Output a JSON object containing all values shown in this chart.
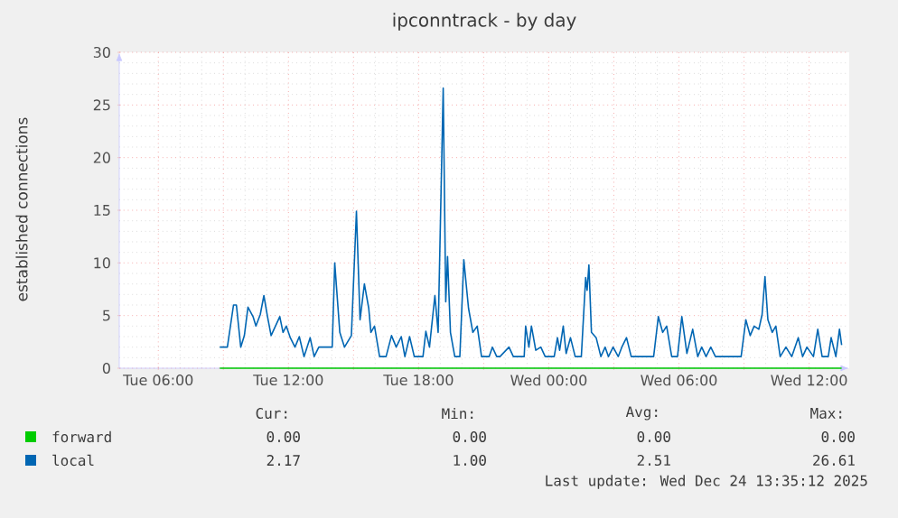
{
  "chart_data": {
    "type": "line",
    "title": "ipconntrack - by day",
    "ylabel": "established connections",
    "xlim": [
      "2025-12-23T04:12",
      "2025-12-24T13:51"
    ],
    "ylim": [
      0,
      30
    ],
    "xticks": [
      {
        "value": "2025-12-23T06:00",
        "label": "Tue 06:00"
      },
      {
        "value": "2025-12-23T09:00",
        "label": null
      },
      {
        "value": "2025-12-23T12:00",
        "label": "Tue 12:00"
      },
      {
        "value": "2025-12-23T15:00",
        "label": null
      },
      {
        "value": "2025-12-23T18:00",
        "label": "Tue 18:00"
      },
      {
        "value": "2025-12-23T21:00",
        "label": null
      },
      {
        "value": "2025-12-24T00:00",
        "label": "Wed 00:00"
      },
      {
        "value": "2025-12-24T03:00",
        "label": null
      },
      {
        "value": "2025-12-24T06:00",
        "label": "Wed 06:00"
      },
      {
        "value": "2025-12-24T09:00",
        "label": null
      },
      {
        "value": "2025-12-24T12:00",
        "label": "Wed 12:00"
      }
    ],
    "yticks": [
      0,
      5,
      10,
      15,
      20,
      25,
      30
    ],
    "grid": true,
    "legend": "bottom",
    "marker": "none",
    "line_style": "solid",
    "series": [
      {
        "name": "forward",
        "color": "#00cc00",
        "x": [
          "2025-12-23T08:50",
          "2025-12-24T13:30"
        ],
        "values": [
          0,
          0
        ]
      },
      {
        "name": "local",
        "color": "#0066b3",
        "x": [
          "2025-12-23T08:50",
          "2025-12-23T09:11",
          "2025-12-23T09:28",
          "2025-12-23T09:36",
          "2025-12-23T09:48",
          "2025-12-23T09:58",
          "2025-12-23T10:08",
          "2025-12-23T10:22",
          "2025-12-23T10:30",
          "2025-12-23T10:42",
          "2025-12-23T10:52",
          "2025-12-23T11:02",
          "2025-12-23T11:12",
          "2025-12-23T11:36",
          "2025-12-23T11:45",
          "2025-12-23T11:54",
          "2025-12-23T12:05",
          "2025-12-23T12:18",
          "2025-12-23T12:30",
          "2025-12-23T12:43",
          "2025-12-23T13:00",
          "2025-12-23T13:11",
          "2025-12-23T13:24",
          "2025-12-23T14:01",
          "2025-12-23T14:08",
          "2025-12-23T14:22",
          "2025-12-23T14:35",
          "2025-12-23T14:54",
          "2025-12-23T15:08",
          "2025-12-23T15:18",
          "2025-12-23T15:30",
          "2025-12-23T15:42",
          "2025-12-23T15:48",
          "2025-12-23T15:58",
          "2025-12-23T16:12",
          "2025-12-23T16:30",
          "2025-12-23T16:45",
          "2025-12-23T16:58",
          "2025-12-23T17:12",
          "2025-12-23T17:22",
          "2025-12-23T17:35",
          "2025-12-23T17:48",
          "2025-12-23T18:12",
          "2025-12-23T18:20",
          "2025-12-23T18:30",
          "2025-12-23T18:45",
          "2025-12-23T18:54",
          "2025-12-23T19:08",
          "2025-12-23T19:15",
          "2025-12-23T19:20",
          "2025-12-23T19:28",
          "2025-12-23T19:40",
          "2025-12-23T19:54",
          "2025-12-23T20:05",
          "2025-12-23T20:18",
          "2025-12-23T20:30",
          "2025-12-23T20:42",
          "2025-12-23T20:54",
          "2025-12-23T21:15",
          "2025-12-23T21:24",
          "2025-12-23T21:36",
          "2025-12-23T21:45",
          "2025-12-23T22:10",
          "2025-12-23T22:22",
          "2025-12-23T22:52",
          "2025-12-23T22:56",
          "2025-12-23T23:05",
          "2025-12-23T23:12",
          "2025-12-23T23:24",
          "2025-12-23T23:38",
          "2025-12-23T23:50",
          "2025-12-24T00:15",
          "2025-12-24T00:24",
          "2025-12-24T00:30",
          "2025-12-24T00:40",
          "2025-12-24T00:48",
          "2025-12-24T01:00",
          "2025-12-24T01:13",
          "2025-12-24T01:30",
          "2025-12-24T01:42",
          "2025-12-24T01:46",
          "2025-12-24T01:51",
          "2025-12-24T01:58",
          "2025-12-24T02:11",
          "2025-12-24T02:24",
          "2025-12-24T02:36",
          "2025-12-24T02:45",
          "2025-12-24T02:58",
          "2025-12-24T03:12",
          "2025-12-24T03:22",
          "2025-12-24T03:35",
          "2025-12-24T03:48",
          "2025-12-24T04:50",
          "2025-12-24T05:03",
          "2025-12-24T05:15",
          "2025-12-24T05:26",
          "2025-12-24T05:40",
          "2025-12-24T05:56",
          "2025-12-24T06:08",
          "2025-12-24T06:22",
          "2025-12-24T06:38",
          "2025-12-24T06:52",
          "2025-12-24T07:03",
          "2025-12-24T07:15",
          "2025-12-24T07:28",
          "2025-12-24T07:41",
          "2025-12-24T08:52",
          "2025-12-24T09:05",
          "2025-12-24T09:17",
          "2025-12-24T09:28",
          "2025-12-24T09:41",
          "2025-12-24T09:50",
          "2025-12-24T09:58",
          "2025-12-24T10:06",
          "2025-12-24T10:18",
          "2025-12-24T10:28",
          "2025-12-24T10:40",
          "2025-12-24T10:56",
          "2025-12-24T11:12",
          "2025-12-24T11:30",
          "2025-12-24T11:42",
          "2025-12-24T11:54",
          "2025-12-24T12:12",
          "2025-12-24T12:24",
          "2025-12-24T12:36",
          "2025-12-24T12:53",
          "2025-12-24T13:01",
          "2025-12-24T13:14",
          "2025-12-24T13:24",
          "2025-12-24T13:30"
        ],
        "values": [
          2,
          2,
          6,
          6,
          2,
          3.1,
          5.8,
          4.9,
          4,
          5.1,
          6.9,
          4.9,
          3.1,
          4.9,
          3.4,
          4,
          2.9,
          2,
          3,
          1.1,
          2.9,
          1.1,
          2,
          2,
          10,
          3.4,
          2,
          3.1,
          14.9,
          4.6,
          8,
          5.7,
          3.4,
          4,
          1.1,
          1.1,
          3.1,
          2,
          3,
          1.1,
          3,
          1.1,
          1.1,
          3.5,
          2,
          6.9,
          3.4,
          26.6,
          6.3,
          10.6,
          3.4,
          1.1,
          1.1,
          10.3,
          5.7,
          3.4,
          4,
          1.1,
          1.1,
          2,
          1.1,
          1.1,
          2,
          1.1,
          1.1,
          4,
          2,
          4,
          1.7,
          2,
          1.1,
          1.1,
          2.9,
          1.7,
          4,
          1.4,
          2.9,
          1.1,
          1.1,
          8.6,
          7.4,
          9.8,
          3.4,
          2.9,
          1.1,
          2,
          1.1,
          2,
          1.1,
          2,
          2.9,
          1.1,
          1.1,
          4.9,
          3.4,
          4,
          1.1,
          1.1,
          4.9,
          1.4,
          3.7,
          1.1,
          2,
          1.1,
          2,
          1.1,
          1.1,
          4.6,
          3.1,
          4,
          3.7,
          5.1,
          8.7,
          4.6,
          3.4,
          4,
          1.1,
          2,
          1.1,
          2.9,
          1.1,
          2,
          1.1,
          3.7,
          1.1,
          1.1,
          2.9,
          1.1,
          3.7,
          2.2
        ]
      }
    ],
    "annotations": [
      "Cur:",
      "Min:",
      "Avg:",
      "Max:",
      "0.00",
      "0.00",
      "0.00",
      "0.00",
      "2.17",
      "1.00",
      "2.51",
      "26.61",
      "Last update: Wed Dec 24 13:35:12 2025"
    ]
  }
}
